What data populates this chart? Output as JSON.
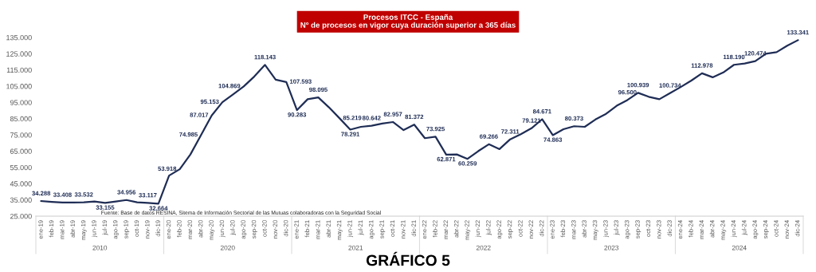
{
  "chart_data": {
    "type": "line",
    "title": "Procesos ITCC - España\nNº de procesos en vigor cuya duración superior a 365 días",
    "categories": [
      "ene-19",
      "feb-19",
      "mar-19",
      "abr-19",
      "may-19",
      "jun-19",
      "jul-19",
      "ago-19",
      "sep-19",
      "oct-19",
      "nov-19",
      "dic-19",
      "ene-20",
      "feb-20",
      "mar-20",
      "abr-20",
      "may-20",
      "jun-20",
      "jul-20",
      "ago-20",
      "sep-20",
      "oct-20",
      "nov-20",
      "dic-20",
      "ene-21",
      "feb-21",
      "mar-21",
      "abr-21",
      "may-21",
      "jun-21",
      "jul-21",
      "ago-21",
      "sep-21",
      "oct-21",
      "nov-21",
      "dic-21",
      "ene-22",
      "feb-22",
      "mar-22",
      "abr-22",
      "may-22",
      "jun-22",
      "jul-22",
      "ago-22",
      "sep-22",
      "oct-22",
      "nov-22",
      "dic-22",
      "ene-23",
      "feb-23",
      "mar-23",
      "abr-23",
      "may-23",
      "jun-23",
      "jul-23",
      "ago-23",
      "sep-23",
      "oct-23",
      "nov-23",
      "dic-23",
      "ene-24",
      "feb-24",
      "mar-24",
      "abr-24",
      "may-24",
      "jun-24",
      "jul-24",
      "ago-24",
      "sep-24",
      "oct-24",
      "nov-24",
      "dic-24"
    ],
    "series": [
      {
        "color": "#1f2d55",
        "values": [
          34288,
          33800,
          33408,
          33400,
          33532,
          34000,
          33155,
          34000,
          34956,
          33500,
          33117,
          32664,
          50000,
          53918,
          63000,
          74985,
          87017,
          95153,
          100000,
          104869,
          111000,
          118143,
          109000,
          107593,
          90283,
          97000,
          98095,
          92000,
          85219,
          78291,
          80000,
          80642,
          82000,
          82957,
          78000,
          81372,
          73000,
          73925,
          62871,
          63000,
          60259,
          65000,
          69266,
          66300,
          72311,
          75500,
          79121,
          84671,
          74863,
          78500,
          80373,
          80000,
          84500,
          88000,
          93000,
          96500,
          100939,
          98500,
          97000,
          100734,
          104500,
          108500,
          112978,
          110500,
          113500,
          118190,
          119000,
          120474,
          125000,
          126000,
          130000,
          133341
        ],
        "value_labels": [
          "34.288",
          null,
          "33.408",
          null,
          "33.532",
          null,
          "33.155",
          null,
          "34.956",
          null,
          "33.117",
          "32.664",
          null,
          "53.918",
          null,
          "74.985",
          "87.017",
          "95.153",
          null,
          "104.869",
          null,
          "118.143",
          null,
          "107.593",
          "90.283",
          null,
          "98.095",
          null,
          "85.219",
          "78.291",
          null,
          "80.642",
          null,
          "82.957",
          null,
          "81.372",
          null,
          "73.925",
          "62.871",
          null,
          "60.259",
          null,
          "69.266",
          null,
          "72.311",
          null,
          "79.121",
          "84.671",
          "74.863",
          null,
          "80.373",
          null,
          null,
          null,
          null,
          "96.500",
          "100.939",
          null,
          null,
          "100.734",
          null,
          null,
          "112.978",
          null,
          null,
          "118.190",
          null,
          "120.474",
          null,
          null,
          null,
          "133.341"
        ]
      }
    ],
    "ylim": [
      25000,
      135000
    ],
    "yticks": [
      {
        "value": 25000,
        "label": "25.000"
      },
      {
        "value": 35000,
        "label": "35.000"
      },
      {
        "value": 45000,
        "label": "45.000"
      },
      {
        "value": 55000,
        "label": "55.000"
      },
      {
        "value": 65000,
        "label": "65.000"
      },
      {
        "value": 75000,
        "label": "75.000"
      },
      {
        "value": 85000,
        "label": "85.000"
      },
      {
        "value": 95000,
        "label": "95.000"
      },
      {
        "value": 105000,
        "label": "105.000"
      },
      {
        "value": 115000,
        "label": "115.000"
      },
      {
        "value": 125000,
        "label": "125.000"
      },
      {
        "value": 135000,
        "label": "135.000"
      }
    ],
    "grid": false,
    "legend": false,
    "marker": "none",
    "line_style": "solid",
    "annotations": [
      "Fuente: Base de datos RESINA, Sitema de Información Sectorial de las Mutuas colaboradoras con la Seguridad Social",
      "2010",
      "2020",
      "2021",
      "2022",
      "2023",
      "2024",
      "GRÁFICO 5"
    ]
  }
}
